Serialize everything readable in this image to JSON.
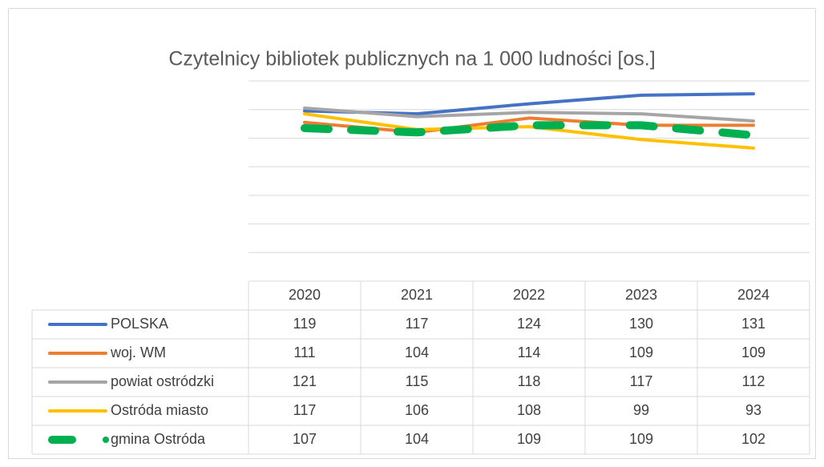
{
  "chart_data": {
    "type": "line",
    "title": "Czytelnicy bibliotek publicznych na 1 000 ludności [os.]",
    "categories": [
      "2020",
      "2021",
      "2022",
      "2023",
      "2024"
    ],
    "series": [
      {
        "name": "POLSKA",
        "color": "#4472c4",
        "values": [
          119,
          117,
          124,
          130,
          131
        ]
      },
      {
        "name": "woj. WM",
        "color": "#ed7d31",
        "values": [
          111,
          104,
          114,
          109,
          109
        ]
      },
      {
        "name": "powiat ostródzki",
        "color": "#a5a5a5",
        "values": [
          121,
          115,
          118,
          117,
          112
        ]
      },
      {
        "name": "Ostróda miasto",
        "color": "#ffc000",
        "values": [
          117,
          106,
          108,
          99,
          93
        ]
      },
      {
        "name": "gmina Ostróda",
        "color": "#00b050",
        "dashed": true,
        "values": [
          107,
          104,
          109,
          109,
          102
        ]
      }
    ],
    "ylim": [
      0,
      140
    ],
    "yticks": [
      0,
      20,
      40,
      60,
      80,
      100,
      120,
      140
    ],
    "grid": true,
    "data_table": true
  }
}
